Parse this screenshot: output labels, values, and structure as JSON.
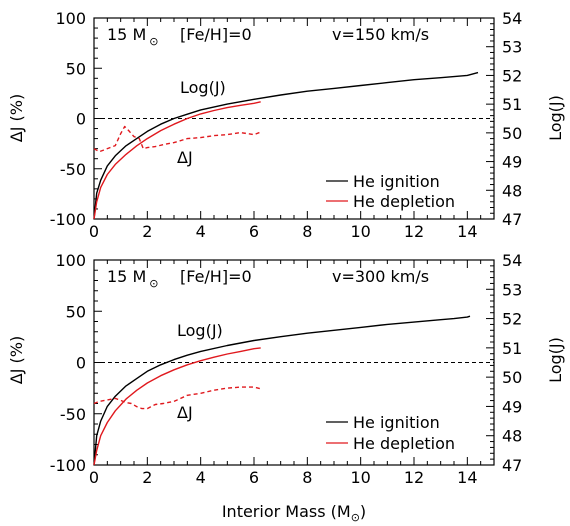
{
  "chart_data": [
    {
      "type": "line",
      "annotation_model": "15 M",
      "annotation_sun": "⊙",
      "annotation_feh": "[Fe/H]=0",
      "annotation_velocity": "v=150 km/s",
      "ylabel": "ΔJ (%)",
      "ylabel_right": "Log(J)",
      "xlim": [
        0,
        15
      ],
      "ylim": [
        -100,
        100
      ],
      "ylim_right": [
        47,
        54
      ],
      "x_ticks": [
        "0",
        "2",
        "4",
        "6",
        "8",
        "10",
        "12",
        "14"
      ],
      "y_ticks": [
        "-100",
        "-50",
        "0",
        "50",
        "100"
      ],
      "y_right_ticks": [
        "47",
        "48",
        "49",
        "50",
        "51",
        "52",
        "53",
        "54"
      ],
      "label_logj": "Log(J)",
      "label_dj": "ΔJ",
      "legend": [
        "He ignition",
        "He depletion"
      ],
      "colors": {
        "ignition": "#000000",
        "depletion": "#e0191e",
        "delta": "#e0191e"
      },
      "series": [
        {
          "name": "He ignition",
          "axis": "right",
          "x": [
            0.0,
            0.1,
            0.25,
            0.5,
            0.8,
            1.2,
            1.6,
            2.0,
            2.5,
            3.0,
            3.5,
            4.0,
            5.0,
            6.0,
            7.0,
            8.0,
            9.0,
            10.0,
            11.0,
            12.0,
            13.0,
            13.5,
            14.0,
            14.4
          ],
          "y": [
            47.0,
            47.9,
            48.35,
            48.85,
            49.2,
            49.55,
            49.8,
            50.05,
            50.3,
            50.5,
            50.65,
            50.8,
            51.0,
            51.17,
            51.32,
            51.45,
            51.55,
            51.65,
            51.75,
            51.85,
            51.92,
            51.96,
            52.0,
            52.1
          ]
        },
        {
          "name": "He depletion",
          "axis": "right",
          "x": [
            0.0,
            0.1,
            0.25,
            0.5,
            0.8,
            1.2,
            1.6,
            2.0,
            2.5,
            3.0,
            3.5,
            4.0,
            4.5,
            5.0,
            5.5,
            6.0,
            6.25
          ],
          "y": [
            47.0,
            47.6,
            48.1,
            48.55,
            48.9,
            49.25,
            49.55,
            49.8,
            50.08,
            50.3,
            50.5,
            50.66,
            50.78,
            50.88,
            50.96,
            51.03,
            51.08
          ]
        },
        {
          "name": "ΔJ",
          "axis": "left",
          "style": "dashed",
          "x": [
            0.0,
            0.2,
            0.4,
            0.6,
            0.8,
            1.0,
            1.15,
            1.3,
            1.5,
            1.7,
            1.85,
            2.0,
            2.3,
            2.6,
            3.0,
            3.5,
            4.0,
            4.5,
            5.0,
            5.5,
            6.0,
            6.3
          ],
          "y": [
            -30,
            -33,
            -31,
            -29,
            -27,
            -15,
            -8,
            -12,
            -18,
            -20,
            -30,
            -29,
            -28,
            -26,
            -24,
            -20,
            -19,
            -17,
            -16,
            -14,
            -16,
            -13
          ]
        }
      ]
    },
    {
      "type": "line",
      "annotation_model": "15 M",
      "annotation_sun": "⊙",
      "annotation_feh": "[Fe/H]=0",
      "annotation_velocity": "v=300 km/s",
      "xlabel": "Interior Mass (M",
      "xlabel_sun": "⊙",
      "xlabel_close": ")",
      "ylabel": "ΔJ (%)",
      "ylabel_right": "Log(J)",
      "xlim": [
        0,
        15
      ],
      "ylim": [
        -100,
        100
      ],
      "ylim_right": [
        47,
        54
      ],
      "x_ticks": [
        "0",
        "2",
        "4",
        "6",
        "8",
        "10",
        "12",
        "14"
      ],
      "y_ticks": [
        "-100",
        "-50",
        "0",
        "50",
        "100"
      ],
      "y_right_ticks": [
        "47",
        "48",
        "49",
        "50",
        "51",
        "52",
        "53",
        "54"
      ],
      "label_logj": "Log(J)",
      "label_dj": "ΔJ",
      "legend": [
        "He ignition",
        "He depletion"
      ],
      "colors": {
        "ignition": "#000000",
        "depletion": "#e0191e",
        "delta": "#e0191e"
      },
      "series": [
        {
          "name": "He ignition",
          "axis": "right",
          "x": [
            0.0,
            0.1,
            0.25,
            0.5,
            0.8,
            1.2,
            1.6,
            2.0,
            2.5,
            3.0,
            3.5,
            4.0,
            5.0,
            6.0,
            7.0,
            8.0,
            9.0,
            10.0,
            11.0,
            12.0,
            13.0,
            13.5,
            14.0,
            14.1
          ],
          "y": [
            47.0,
            48.0,
            48.5,
            49.0,
            49.35,
            49.7,
            49.95,
            50.2,
            50.42,
            50.6,
            50.75,
            50.88,
            51.08,
            51.25,
            51.38,
            51.5,
            51.6,
            51.7,
            51.8,
            51.88,
            51.96,
            52.0,
            52.05,
            52.08
          ]
        },
        {
          "name": "He depletion",
          "axis": "right",
          "x": [
            0.0,
            0.1,
            0.25,
            0.5,
            0.8,
            1.2,
            1.6,
            2.0,
            2.5,
            3.0,
            3.5,
            4.0,
            4.5,
            5.0,
            5.5,
            6.0,
            6.25
          ],
          "y": [
            47.0,
            47.5,
            48.0,
            48.45,
            48.85,
            49.25,
            49.55,
            49.8,
            50.05,
            50.25,
            50.42,
            50.56,
            50.68,
            50.79,
            50.88,
            50.97,
            51.0
          ]
        },
        {
          "name": "ΔJ",
          "axis": "left",
          "style": "dashed",
          "x": [
            0.0,
            0.2,
            0.4,
            0.6,
            0.8,
            1.0,
            1.2,
            1.4,
            1.6,
            1.8,
            2.0,
            2.3,
            2.6,
            3.0,
            3.5,
            4.0,
            4.5,
            5.0,
            5.5,
            6.0,
            6.3
          ],
          "y": [
            -40,
            -38,
            -37,
            -36,
            -35,
            -37,
            -39,
            -40,
            -43,
            -45,
            -45,
            -41,
            -40,
            -38,
            -32,
            -30,
            -27,
            -25,
            -24,
            -24,
            -26
          ]
        }
      ]
    }
  ]
}
